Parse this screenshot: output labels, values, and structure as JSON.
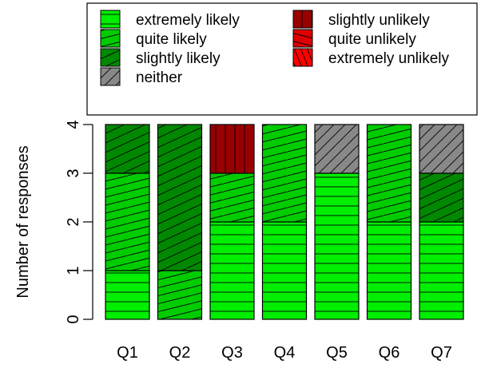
{
  "chart_data": {
    "type": "bar",
    "stacked": true,
    "categories": [
      "Q1",
      "Q2",
      "Q3",
      "Q4",
      "Q5",
      "Q6",
      "Q7"
    ],
    "ylabel": "Number of responses",
    "ylim": [
      0,
      4
    ],
    "yticks": [
      "0",
      "1",
      "2",
      "3",
      "4"
    ],
    "legend_position": "top",
    "series": [
      {
        "name": "extremely likely",
        "color": "#00ee00",
        "pattern": "horizontal",
        "values": [
          1,
          0,
          2,
          2,
          3,
          2,
          2
        ]
      },
      {
        "name": "quite likely",
        "color": "#00cc00",
        "pattern": "shallow-diagonal",
        "values": [
          2,
          1,
          1,
          2,
          0,
          2,
          0
        ]
      },
      {
        "name": "slightly likely",
        "color": "#008800",
        "pattern": "medium-diagonal",
        "values": [
          1,
          3,
          0,
          0,
          0,
          0,
          1
        ]
      },
      {
        "name": "neither",
        "color": "#888888",
        "pattern": "steep-diagonal",
        "values": [
          0,
          0,
          0,
          0,
          1,
          0,
          1
        ]
      },
      {
        "name": "slightly unlikely",
        "color": "#990000",
        "pattern": "vertical",
        "values": [
          0,
          0,
          1,
          0,
          0,
          0,
          0
        ]
      },
      {
        "name": "quite unlikely",
        "color": "#dd0000",
        "pattern": "shallow-diagonal-reverse",
        "values": [
          0,
          0,
          0,
          0,
          0,
          0,
          0
        ]
      },
      {
        "name": "extremely unlikely",
        "color": "#ff0000",
        "pattern": "steep-diagonal-reverse",
        "values": [
          0,
          0,
          0,
          0,
          0,
          0,
          0
        ]
      }
    ]
  }
}
